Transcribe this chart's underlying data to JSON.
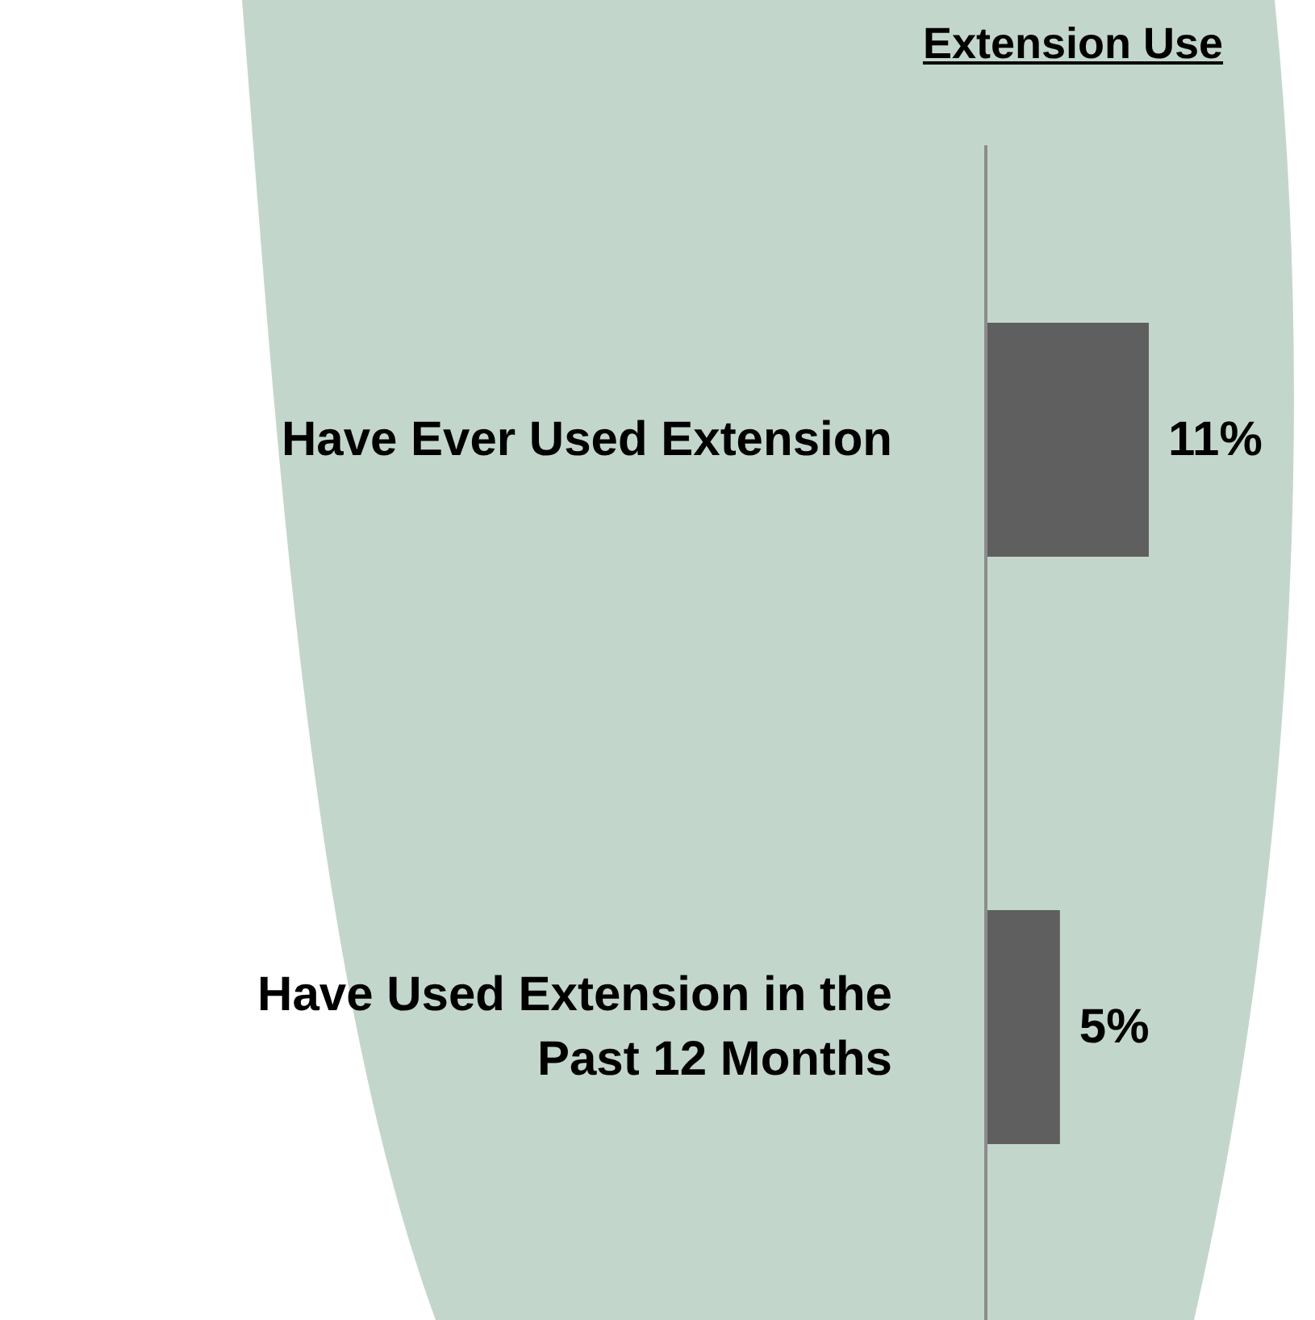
{
  "chart_data": {
    "type": "bar",
    "orientation": "horizontal",
    "title": "Extension Use",
    "categories": [
      "Have Ever Used Extension",
      "Have Used Extension in the Past 12 Months"
    ],
    "values": [
      11,
      5
    ],
    "value_labels": [
      "11%",
      "5%"
    ],
    "color": "#5f5f5f"
  }
}
